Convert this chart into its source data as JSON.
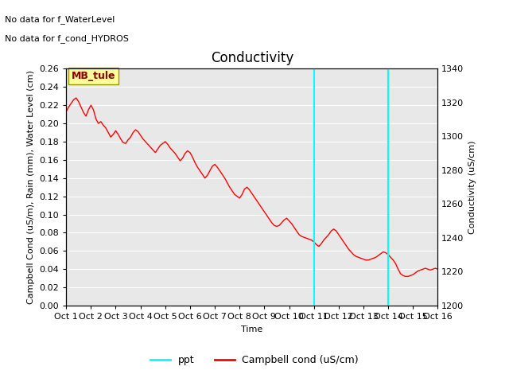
{
  "title": "Conductivity",
  "ylabel_left": "Campbell Cond (uS/m), Rain (mm), Water Level (cm)",
  "ylabel_right": "Conductivity (uS/cm)",
  "xlabel": "Time",
  "ylim_left": [
    0.0,
    0.26
  ],
  "ylim_right": [
    1200,
    1340
  ],
  "xlim": [
    0,
    15
  ],
  "xtick_positions": [
    0,
    1,
    2,
    3,
    4,
    5,
    6,
    7,
    8,
    9,
    10,
    11,
    12,
    13,
    14,
    15
  ],
  "xtick_labels": [
    "Oct 1",
    "Oct 2",
    "Oct 3",
    "Oct 4",
    "Oct 5",
    "Oct 6",
    "Oct 7",
    "Oct 8",
    "Oct 9",
    "Oct 10",
    "Oct 11",
    "Oct 12",
    "Oct 13",
    "Oct 14",
    "Oct 15",
    "Oct 16"
  ],
  "annotation1": "No data for f_WaterLevel",
  "annotation2": "No data for f_cond_HYDROS",
  "legend_box_label": "MB_tule",
  "legend_box_color": "#ffff99",
  "legend_box_edge": "#999900",
  "vline_positions": [
    10,
    13
  ],
  "vline_color": "cyan",
  "line_color": "red",
  "background_color": "#e8e8e8",
  "yticks_left": [
    0.0,
    0.02,
    0.04,
    0.06,
    0.08,
    0.1,
    0.12,
    0.14,
    0.16,
    0.18,
    0.2,
    0.22,
    0.24,
    0.26
  ],
  "yticks_right": [
    1200,
    1220,
    1240,
    1260,
    1280,
    1300,
    1320,
    1340
  ],
  "red_x": [
    0.0,
    0.1,
    0.2,
    0.3,
    0.4,
    0.5,
    0.6,
    0.7,
    0.8,
    0.9,
    1.0,
    1.1,
    1.2,
    1.3,
    1.4,
    1.5,
    1.6,
    1.7,
    1.8,
    1.9,
    2.0,
    2.1,
    2.2,
    2.3,
    2.4,
    2.5,
    2.6,
    2.7,
    2.8,
    2.9,
    3.0,
    3.1,
    3.2,
    3.3,
    3.4,
    3.5,
    3.6,
    3.7,
    3.8,
    3.9,
    4.0,
    4.1,
    4.2,
    4.3,
    4.4,
    4.5,
    4.6,
    4.7,
    4.8,
    4.9,
    5.0,
    5.1,
    5.2,
    5.3,
    5.4,
    5.5,
    5.6,
    5.7,
    5.8,
    5.9,
    6.0,
    6.1,
    6.2,
    6.3,
    6.4,
    6.5,
    6.6,
    6.7,
    6.8,
    6.9,
    7.0,
    7.1,
    7.2,
    7.3,
    7.4,
    7.5,
    7.6,
    7.7,
    7.8,
    7.9,
    8.0,
    8.1,
    8.2,
    8.3,
    8.4,
    8.5,
    8.6,
    8.7,
    8.8,
    8.9,
    9.0,
    9.1,
    9.2,
    9.3,
    9.4,
    9.5,
    9.6,
    9.7,
    9.8,
    9.9,
    10.0,
    10.1,
    10.2,
    10.3,
    10.4,
    10.5,
    10.6,
    10.7,
    10.8,
    10.9,
    11.0,
    11.1,
    11.2,
    11.3,
    11.4,
    11.5,
    11.6,
    11.7,
    11.8,
    11.9,
    12.0,
    12.1,
    12.2,
    12.3,
    12.4,
    12.5,
    12.6,
    12.7,
    12.8,
    12.9,
    13.0,
    13.1,
    13.2,
    13.3,
    13.4,
    13.5,
    13.6,
    13.7,
    13.8,
    13.9,
    14.0,
    14.1,
    14.2,
    14.3,
    14.4,
    14.5,
    14.6,
    14.7,
    14.8,
    14.9,
    15.0
  ],
  "red_y": [
    0.213,
    0.218,
    0.222,
    0.226,
    0.228,
    0.224,
    0.218,
    0.212,
    0.208,
    0.215,
    0.22,
    0.215,
    0.205,
    0.2,
    0.202,
    0.198,
    0.195,
    0.19,
    0.185,
    0.188,
    0.192,
    0.188,
    0.183,
    0.179,
    0.178,
    0.182,
    0.185,
    0.19,
    0.193,
    0.191,
    0.187,
    0.183,
    0.18,
    0.177,
    0.174,
    0.171,
    0.168,
    0.172,
    0.176,
    0.178,
    0.18,
    0.177,
    0.173,
    0.17,
    0.167,
    0.163,
    0.159,
    0.162,
    0.167,
    0.17,
    0.168,
    0.163,
    0.157,
    0.152,
    0.148,
    0.144,
    0.14,
    0.143,
    0.148,
    0.153,
    0.155,
    0.152,
    0.148,
    0.144,
    0.14,
    0.135,
    0.13,
    0.126,
    0.122,
    0.12,
    0.118,
    0.122,
    0.128,
    0.13,
    0.127,
    0.123,
    0.119,
    0.115,
    0.111,
    0.107,
    0.103,
    0.099,
    0.095,
    0.091,
    0.088,
    0.087,
    0.088,
    0.091,
    0.094,
    0.096,
    0.093,
    0.09,
    0.086,
    0.082,
    0.078,
    0.076,
    0.075,
    0.074,
    0.073,
    0.072,
    0.07,
    0.067,
    0.065,
    0.068,
    0.072,
    0.075,
    0.078,
    0.082,
    0.084,
    0.082,
    0.078,
    0.074,
    0.07,
    0.066,
    0.062,
    0.059,
    0.056,
    0.054,
    0.053,
    0.052,
    0.051,
    0.05,
    0.05,
    0.051,
    0.052,
    0.053,
    0.055,
    0.057,
    0.059,
    0.058,
    0.056,
    0.053,
    0.05,
    0.046,
    0.04,
    0.035,
    0.033,
    0.032,
    0.032,
    0.033,
    0.034,
    0.036,
    0.038,
    0.039,
    0.04,
    0.041,
    0.04,
    0.039,
    0.04,
    0.041,
    0.04
  ],
  "legend_items": [
    {
      "label": "ppt",
      "color": "cyan",
      "linestyle": "-"
    },
    {
      "label": "Campbell cond (uS/cm)",
      "color": "red",
      "linestyle": "-"
    }
  ],
  "font_size_title": 12,
  "font_size_axis": 8,
  "font_size_tick": 8,
  "font_size_annotation": 8
}
